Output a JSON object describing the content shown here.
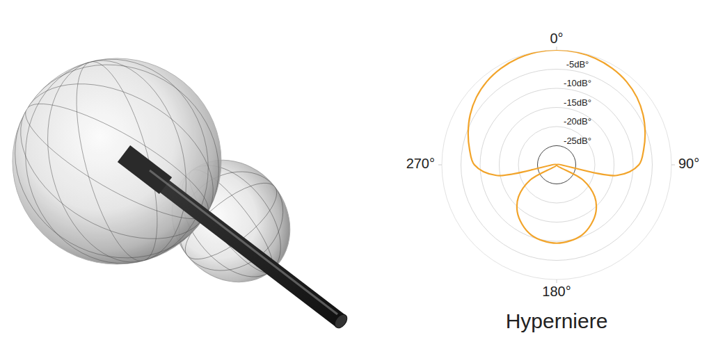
{
  "chart_data": {
    "type": "polar",
    "title": "Hyperniere",
    "color": "#f2a42a",
    "grid": true,
    "x": [
      0,
      10,
      20,
      30,
      40,
      50,
      60,
      70,
      80,
      90,
      100,
      110,
      120,
      130,
      140,
      150,
      160,
      170,
      180,
      190,
      200,
      210,
      220,
      230,
      240,
      250,
      260,
      270,
      280,
      290,
      300,
      310,
      320,
      330,
      340,
      350
    ],
    "values": [
      0,
      -0.1,
      -0.4,
      -0.9,
      -1.6,
      -2.6,
      -3.9,
      -5.4,
      -6.9,
      -8.5,
      -14,
      -30,
      -22,
      -17,
      -14,
      -12,
      -10.5,
      -9.8,
      -9.5,
      -9.8,
      -10.5,
      -12,
      -14,
      -17,
      -22,
      -30,
      -14,
      -8.5,
      -6.9,
      -5.4,
      -3.9,
      -2.6,
      -1.6,
      -0.9,
      -0.4,
      -0.1
    ],
    "xlim": [
      0,
      360
    ],
    "xticks": [
      {
        "value": 0,
        "label": "0°"
      },
      {
        "value": 90,
        "label": "90°"
      },
      {
        "value": 180,
        "label": "180°"
      },
      {
        "value": 270,
        "label": "270°"
      }
    ],
    "ylim": [
      -30,
      0
    ],
    "yticks": [
      {
        "value": -25,
        "label": "-25dB°"
      },
      {
        "value": -20,
        "label": "-20dB°"
      },
      {
        "value": -15,
        "label": "-15dB°"
      },
      {
        "value": -10,
        "label": "-10dB°"
      },
      {
        "value": -5,
        "label": "-5dB°"
      }
    ]
  }
}
